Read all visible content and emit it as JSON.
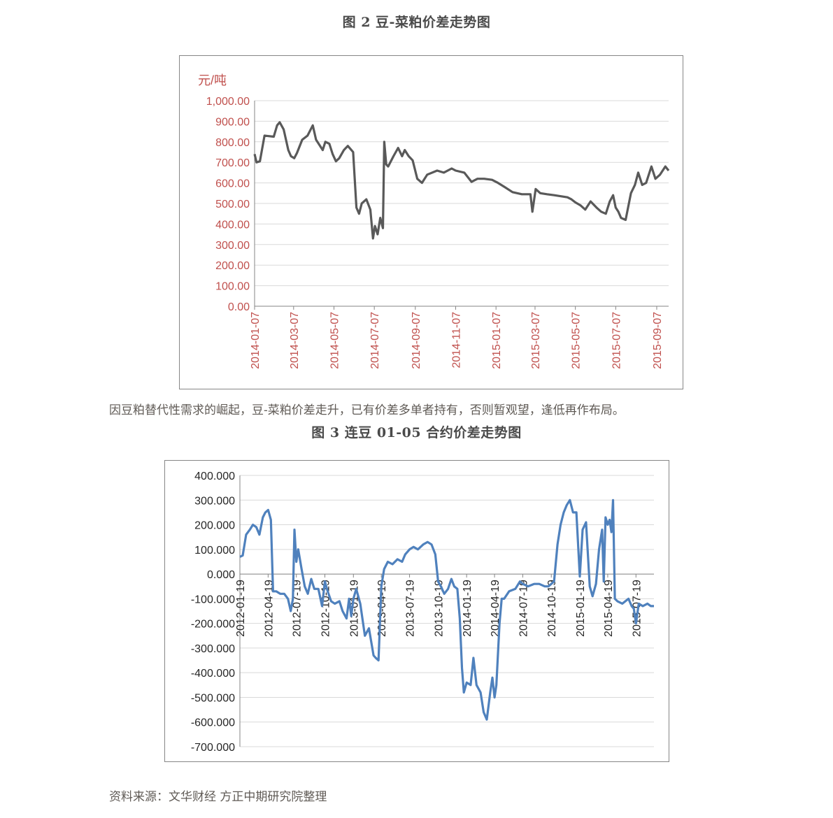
{
  "fig2_title": "图 2 豆-菜粕价差走势图",
  "fig3_title": "图 3 连豆 01-05 合约价差走势图",
  "note_text": "因豆粕替代性需求的崛起，豆-菜粕价差走升，已有价差多单者持有，否则暂观望，逢低再作布局。",
  "source_text": "资料来源：文华财经 方正中期研究院整理",
  "colors": {
    "chart1_line": "#595959",
    "chart2_line": "#4f81bd",
    "chart1_axis_text": "#c0504d",
    "grid": "#d9d9d9"
  },
  "chart_data": [
    {
      "type": "line",
      "ylabel": "元/吨",
      "ylim": [
        0,
        1000
      ],
      "grid": "horizontal",
      "y_ticks": [
        "1,000.00",
        "900.00",
        "800.00",
        "700.00",
        "600.00",
        "500.00",
        "400.00",
        "300.00",
        "200.00",
        "100.00",
        "0.00"
      ],
      "x_ticks": [
        "2014-01-07",
        "2014-03-07",
        "2014-05-07",
        "2014-07-07",
        "2014-09-07",
        "2014-11-07",
        "2015-01-07",
        "2015-03-07",
        "2015-05-07",
        "2015-07-07",
        "2015-09-07"
      ],
      "x_range": [
        "2014-01-07",
        "2015-09-25"
      ],
      "series": [
        {
          "x": [
            "2014-01-07",
            "2014-01-10",
            "2014-01-15",
            "2014-01-22",
            "2014-02-05",
            "2014-02-10",
            "2014-02-14",
            "2014-02-20",
            "2014-02-27",
            "2014-03-03",
            "2014-03-08",
            "2014-03-12",
            "2014-03-20",
            "2014-03-28",
            "2014-04-05",
            "2014-04-10",
            "2014-04-14",
            "2014-04-20",
            "2014-04-24",
            "2014-04-30",
            "2014-05-05",
            "2014-05-10",
            "2014-05-15",
            "2014-05-22",
            "2014-05-28",
            "2014-06-05",
            "2014-06-10",
            "2014-06-14",
            "2014-06-18",
            "2014-06-25",
            "2014-07-01",
            "2014-07-05",
            "2014-07-08",
            "2014-07-12",
            "2014-07-16",
            "2014-07-20",
            "2014-07-22",
            "2014-07-25",
            "2014-07-28",
            "2014-08-05",
            "2014-08-12",
            "2014-08-18",
            "2014-08-22",
            "2014-08-28",
            "2014-09-03",
            "2014-09-10",
            "2014-09-17",
            "2014-09-25",
            "2014-10-10",
            "2014-10-20",
            "2014-11-01",
            "2014-11-07",
            "2014-11-20",
            "2014-12-01",
            "2014-12-10",
            "2014-12-20",
            "2015-01-01",
            "2015-01-10",
            "2015-01-20",
            "2015-02-01",
            "2015-02-15",
            "2015-02-28",
            "2015-03-03",
            "2015-03-08",
            "2015-03-15",
            "2015-03-25",
            "2015-04-05",
            "2015-04-15",
            "2015-04-25",
            "2015-05-01",
            "2015-05-07",
            "2015-05-15",
            "2015-05-22",
            "2015-05-30",
            "2015-06-08",
            "2015-06-15",
            "2015-06-22",
            "2015-06-28",
            "2015-07-03",
            "2015-07-07",
            "2015-07-11",
            "2015-07-15",
            "2015-07-22",
            "2015-07-30",
            "2015-08-05",
            "2015-08-10",
            "2015-08-16",
            "2015-08-22",
            "2015-08-30",
            "2015-09-05",
            "2015-09-12",
            "2015-09-20",
            "2015-09-25"
          ],
          "y": [
            740,
            700,
            705,
            830,
            825,
            880,
            895,
            860,
            760,
            730,
            720,
            745,
            810,
            830,
            880,
            810,
            790,
            760,
            800,
            790,
            740,
            705,
            720,
            760,
            780,
            750,
            480,
            450,
            500,
            520,
            470,
            330,
            390,
            350,
            430,
            380,
            800,
            690,
            680,
            730,
            770,
            730,
            760,
            730,
            710,
            620,
            600,
            640,
            660,
            650,
            670,
            660,
            650,
            605,
            620,
            620,
            615,
            600,
            580,
            555,
            545,
            545,
            460,
            570,
            550,
            545,
            540,
            535,
            530,
            520,
            505,
            490,
            470,
            510,
            480,
            460,
            450,
            510,
            540,
            480,
            460,
            430,
            420,
            550,
            590,
            650,
            590,
            600,
            680,
            620,
            640,
            680,
            660
          ]
        }
      ]
    },
    {
      "type": "line",
      "ylim": [
        -700,
        400
      ],
      "grid": "horizontal",
      "y_ticks": [
        "400.000",
        "300.000",
        "200.000",
        "100.000",
        "0.000",
        "-100.000",
        "-200.000",
        "-300.000",
        "-400.000",
        "-500.000",
        "-600.000",
        "-700.000"
      ],
      "x_ticks": [
        "2012-01-19",
        "2012-04-19",
        "2012-07-19",
        "2012-10-19",
        "2013-01-19",
        "2013-04-19",
        "2013-07-19",
        "2013-10-19",
        "2014-01-19",
        "2014-04-19",
        "2014-07-19",
        "2014-10-19",
        "2015-01-19",
        "2015-04-19",
        "2015-07-19"
      ],
      "x_range": [
        "2012-01-19",
        "2015-09-15"
      ],
      "series": [
        {
          "x": [
            "2012-01-19",
            "2012-01-28",
            "2012-02-08",
            "2012-02-20",
            "2012-03-01",
            "2012-03-12",
            "2012-03-22",
            "2012-04-02",
            "2012-04-10",
            "2012-04-19",
            "2012-04-28",
            "2012-05-05",
            "2012-05-15",
            "2012-05-28",
            "2012-06-10",
            "2012-06-22",
            "2012-07-01",
            "2012-07-08",
            "2012-07-13",
            "2012-07-19",
            "2012-07-25",
            "2012-08-05",
            "2012-08-15",
            "2012-08-25",
            "2012-09-05",
            "2012-09-15",
            "2012-09-28",
            "2012-10-10",
            "2012-10-19",
            "2012-10-28",
            "2012-11-08",
            "2012-11-20",
            "2012-12-05",
            "2012-12-15",
            "2012-12-28",
            "2013-01-05",
            "2013-01-12",
            "2013-01-19",
            "2013-01-28",
            "2013-02-10",
            "2013-02-25",
            "2013-03-10",
            "2013-03-25",
            "2013-04-01",
            "2013-04-10",
            "2013-04-19",
            "2013-04-28",
            "2013-05-10",
            "2013-05-25",
            "2013-06-10",
            "2013-06-25",
            "2013-07-05",
            "2013-07-19",
            "2013-08-01",
            "2013-08-15",
            "2013-09-01",
            "2013-09-15",
            "2013-09-28",
            "2013-10-10",
            "2013-10-19",
            "2013-10-28",
            "2013-11-08",
            "2013-11-20",
            "2013-12-01",
            "2013-12-10",
            "2013-12-20",
            "2013-12-28",
            "2014-01-04",
            "2014-01-10",
            "2014-01-19",
            "2014-02-01",
            "2014-02-10",
            "2014-02-20",
            "2014-03-05",
            "2014-03-15",
            "2014-03-25",
            "2014-04-05",
            "2014-04-12",
            "2014-04-19",
            "2014-04-25",
            "2014-05-05",
            "2014-05-12",
            "2014-05-20",
            "2014-06-05",
            "2014-06-25",
            "2014-07-10",
            "2014-07-19",
            "2014-08-05",
            "2014-08-25",
            "2014-09-10",
            "2014-09-28",
            "2014-10-10",
            "2014-10-19",
            "2014-10-28",
            "2014-11-08",
            "2014-11-18",
            "2014-11-28",
            "2014-12-08",
            "2014-12-18",
            "2014-12-28",
            "2015-01-08",
            "2015-01-19",
            "2015-01-28",
            "2015-02-08",
            "2015-02-20",
            "2015-03-01",
            "2015-03-12",
            "2015-03-22",
            "2015-04-01",
            "2015-04-06",
            "2015-04-12",
            "2015-04-19",
            "2015-04-25",
            "2015-05-01",
            "2015-05-06",
            "2015-05-12",
            "2015-05-20",
            "2015-06-05",
            "2015-06-25",
            "2015-07-05",
            "2015-07-12",
            "2015-07-19",
            "2015-07-28",
            "2015-08-10",
            "2015-08-25",
            "2015-09-05",
            "2015-09-15"
          ],
          "y": [
            70,
            75,
            160,
            180,
            200,
            190,
            160,
            230,
            250,
            260,
            220,
            -70,
            -70,
            -80,
            -80,
            -100,
            -150,
            -100,
            180,
            50,
            100,
            20,
            -50,
            -80,
            -20,
            -60,
            -60,
            -130,
            -30,
            -70,
            -110,
            -120,
            -110,
            -150,
            -180,
            -100,
            -170,
            -100,
            -60,
            -120,
            -250,
            -220,
            -330,
            -340,
            -350,
            -50,
            20,
            50,
            40,
            60,
            50,
            80,
            100,
            110,
            100,
            120,
            130,
            120,
            80,
            -30,
            -50,
            -80,
            -60,
            -20,
            -50,
            -60,
            -180,
            -380,
            -480,
            -440,
            -450,
            -340,
            -450,
            -480,
            -560,
            -590,
            -480,
            -420,
            -500,
            -450,
            -200,
            -100,
            -100,
            -70,
            -60,
            -30,
            -40,
            -50,
            -40,
            -40,
            -50,
            -50,
            -40,
            -30,
            120,
            200,
            250,
            280,
            300,
            250,
            250,
            -10,
            180,
            210,
            -50,
            -90,
            -40,
            100,
            180,
            -30,
            230,
            200,
            220,
            170,
            300,
            -100,
            -110,
            -120,
            -100,
            -130,
            -140,
            -200,
            -120,
            -130,
            -120,
            -130,
            -130
          ]
        }
      ]
    }
  ]
}
